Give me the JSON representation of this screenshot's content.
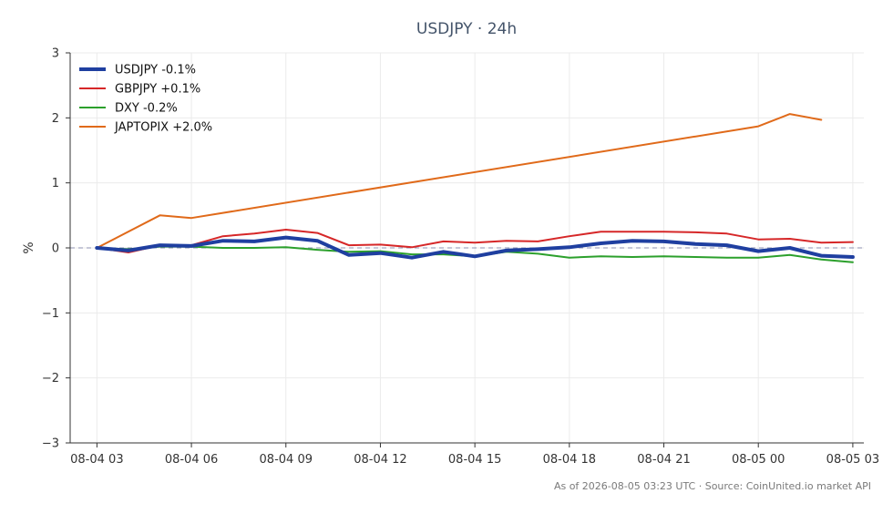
{
  "chart_data": {
    "type": "line",
    "title": "USDJPY · 24h",
    "ylabel": "%",
    "xlabel": "",
    "xlim": [
      -0.85,
      24.35
    ],
    "ylim": [
      -3,
      3
    ],
    "x_ticks": [
      {
        "x": 0,
        "label": "08-04 03"
      },
      {
        "x": 3,
        "label": "08-04 06"
      },
      {
        "x": 6,
        "label": "08-04 09"
      },
      {
        "x": 9,
        "label": "08-04 12"
      },
      {
        "x": 12,
        "label": "08-04 15"
      },
      {
        "x": 15,
        "label": "08-04 18"
      },
      {
        "x": 18,
        "label": "08-04 21"
      },
      {
        "x": 21,
        "label": "08-05 00"
      },
      {
        "x": 24,
        "label": "08-05 03"
      }
    ],
    "y_ticks": [
      {
        "y": 3,
        "label": "3"
      },
      {
        "y": 2,
        "label": "2"
      },
      {
        "y": 1,
        "label": "1"
      },
      {
        "y": 0,
        "label": "0"
      },
      {
        "y": -1,
        "label": "−1"
      },
      {
        "y": -2,
        "label": "−2"
      },
      {
        "y": -3,
        "label": "−3"
      }
    ],
    "zero_line": true,
    "grid": true,
    "legend_position": "top-left",
    "series": [
      {
        "name": "USDJPY -0.1%",
        "color": "#1f3fa0",
        "emphasis": true,
        "x": [
          0,
          1,
          2,
          3,
          4,
          5,
          6,
          7,
          8,
          9,
          10,
          11,
          12,
          13,
          14,
          15,
          16,
          17,
          18,
          19,
          20,
          21,
          22,
          23,
          24
        ],
        "y": [
          0.0,
          -0.04,
          0.04,
          0.03,
          0.11,
          0.1,
          0.16,
          0.11,
          -0.11,
          -0.08,
          -0.15,
          -0.06,
          -0.13,
          -0.04,
          -0.02,
          0.01,
          0.07,
          0.11,
          0.1,
          0.06,
          0.04,
          -0.05,
          0.0,
          -0.12,
          -0.14
        ]
      },
      {
        "name": "GBPJPY +0.1%",
        "color": "#d62728",
        "emphasis": false,
        "x": [
          0,
          1,
          2,
          3,
          4,
          5,
          6,
          7,
          8,
          9,
          10,
          11,
          12,
          13,
          14,
          15,
          16,
          17,
          18,
          19,
          20,
          21,
          22,
          23,
          24
        ],
        "y": [
          0.0,
          -0.07,
          0.04,
          0.04,
          0.18,
          0.22,
          0.28,
          0.23,
          0.04,
          0.05,
          0.01,
          0.1,
          0.08,
          0.11,
          0.1,
          0.18,
          0.25,
          0.25,
          0.25,
          0.24,
          0.22,
          0.13,
          0.14,
          0.08,
          0.09
        ]
      },
      {
        "name": "DXY -0.2%",
        "color": "#2ca02c",
        "emphasis": false,
        "x": [
          0,
          1,
          2,
          3,
          4,
          5,
          6,
          7,
          8,
          9,
          10,
          11,
          12,
          13,
          14,
          15,
          16,
          17,
          18,
          19,
          20,
          21,
          22,
          23,
          24
        ],
        "y": [
          0.0,
          -0.02,
          0.02,
          0.02,
          0.0,
          0.0,
          0.01,
          -0.03,
          -0.06,
          -0.05,
          -0.1,
          -0.1,
          -0.13,
          -0.06,
          -0.09,
          -0.15,
          -0.13,
          -0.14,
          -0.13,
          -0.14,
          -0.15,
          -0.15,
          -0.11,
          -0.18,
          -0.22
        ]
      },
      {
        "name": "JAPTOPIX +2.0%",
        "color": "#e06a1a",
        "emphasis": false,
        "x": [
          0,
          2,
          3,
          21,
          22,
          23
        ],
        "y": [
          0.0,
          0.5,
          0.46,
          1.87,
          2.06,
          1.97
        ]
      }
    ]
  },
  "footer_text": "As of 2026-08-05 03:23 UTC · Source: CoinUnited.io market API"
}
